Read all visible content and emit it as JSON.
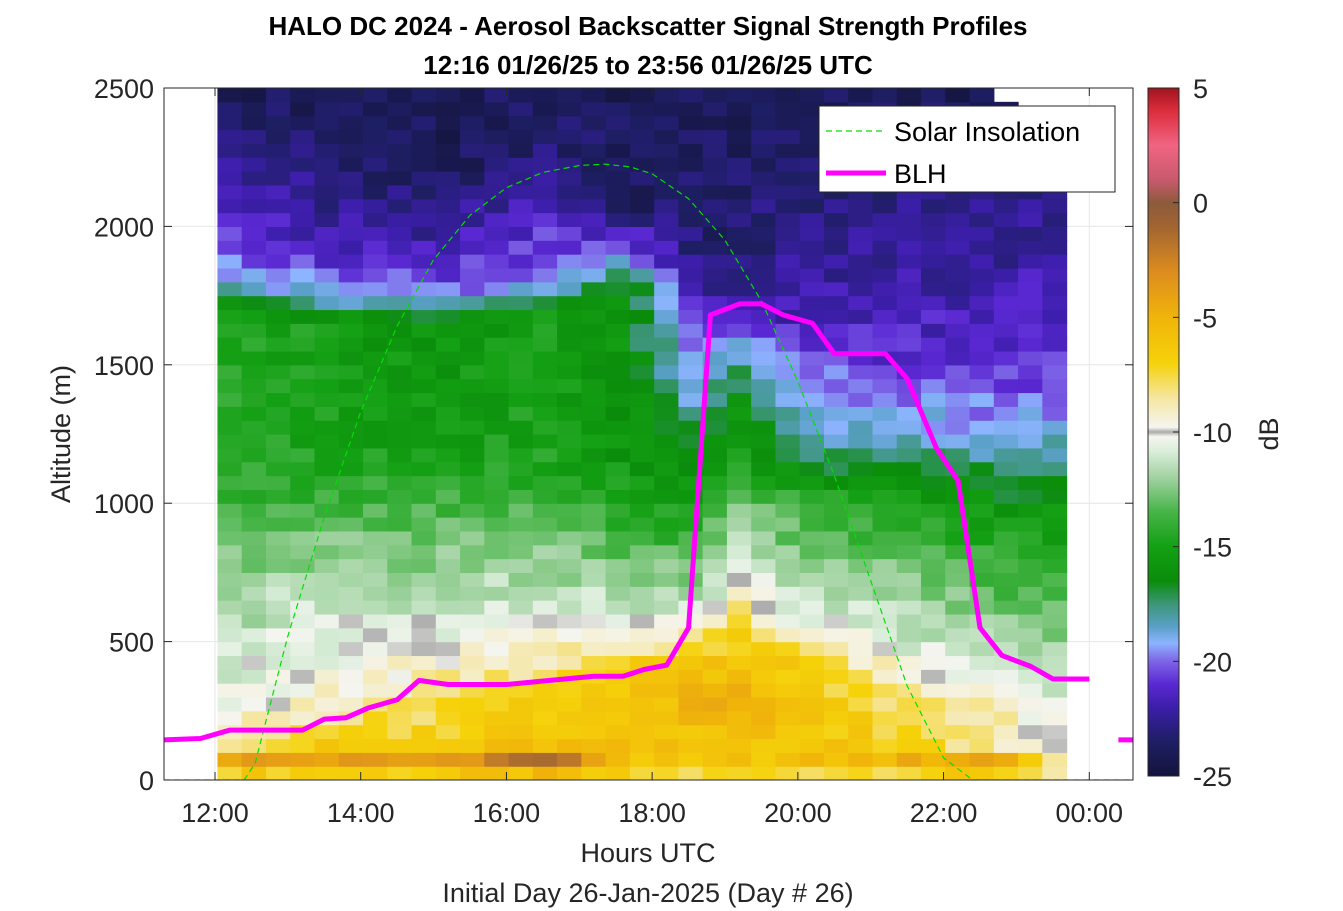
{
  "chart_data": {
    "type": "heatmap",
    "title": "HALO DC 2024 - Aerosol Backscatter Signal Strength Profiles",
    "subtitle": "12:16 01/26/25 to 23:56 01/26/25  UTC",
    "xlabel": "Hours UTC",
    "xlabel2": "Initial Day 26-Jan-2025 (Day # 26)",
    "ylabel": "Altitude (m)",
    "colorbar_label": "dB",
    "xlim": [
      11.3,
      24.6
    ],
    "ylim": [
      0,
      2500
    ],
    "clim": [
      -25,
      5
    ],
    "grid": true,
    "legend_position": "top-right",
    "x_ticks": [
      12,
      14,
      16,
      18,
      20,
      22,
      24
    ],
    "x_tick_labels": [
      "12:00",
      "14:00",
      "16:00",
      "18:00",
      "20:00",
      "22:00",
      "00:00"
    ],
    "y_ticks": [
      0,
      500,
      1000,
      1500,
      2000,
      2500
    ],
    "y_tick_labels": [
      "0",
      "500",
      "1000",
      "1500",
      "2000",
      "2500"
    ],
    "cbar_ticks": [
      5,
      0,
      -5,
      -10,
      -15,
      -20,
      -25
    ],
    "cbar_tick_labels": [
      "5",
      "0",
      "-5",
      "-10",
      "-15",
      "-20",
      "-25"
    ],
    "colors": {
      "solar_insolation": "#00e000",
      "blh": "#ff00ff"
    },
    "series": [
      {
        "name": "Solar Insolation",
        "style": "dashed",
        "x": [
          11.3,
          12.4,
          12.55,
          13.0,
          13.5,
          14.0,
          14.5,
          15.0,
          15.5,
          16.0,
          16.5,
          17.0,
          17.35,
          17.7,
          18.0,
          18.5,
          19.0,
          19.5,
          20.0,
          20.5,
          21.0,
          21.5,
          22.0,
          22.3,
          22.4,
          24.6
        ],
        "y": [
          0,
          0,
          60,
          520,
          950,
          1330,
          1640,
          1880,
          2040,
          2140,
          2195,
          2220,
          2225,
          2215,
          2190,
          2100,
          1950,
          1730,
          1440,
          1100,
          720,
          340,
          80,
          20,
          0,
          0
        ]
      },
      {
        "name": "BLH",
        "x": [
          11.3,
          11.8,
          12.2,
          12.6,
          13.0,
          13.2,
          13.5,
          13.8,
          14.1,
          14.5,
          14.8,
          15.2,
          15.6,
          16.0,
          16.4,
          16.8,
          17.2,
          17.6,
          17.9,
          18.2,
          18.5,
          18.8,
          19.2,
          19.5,
          19.8,
          20.2,
          20.5,
          20.9,
          21.2,
          21.5,
          21.9,
          22.2,
          22.5,
          22.8,
          23.2,
          23.5,
          24.0
        ],
        "y": [
          145,
          150,
          180,
          180,
          180,
          180,
          220,
          225,
          260,
          290,
          360,
          345,
          345,
          345,
          355,
          365,
          375,
          375,
          400,
          415,
          550,
          1680,
          1720,
          1720,
          1680,
          1650,
          1540,
          1540,
          1540,
          1450,
          1200,
          1080,
          550,
          450,
          410,
          365,
          365
        ]
      },
      {
        "name": "",
        "x": [
          24.4,
          24.6
        ],
        "y": [
          145,
          145
        ]
      }
    ],
    "heatmap": {
      "x_start": 12.2,
      "x_step": 0.333,
      "n_cols": 35,
      "y_start": 25,
      "y_step": 50,
      "n_rows": 50,
      "profile_knots": [
        {
          "x": 12.2,
          "top": 2480,
          "pts": [
            [
              0,
              -8
            ],
            [
              75,
              -4
            ],
            [
              130,
              -8
            ],
            [
              200,
              -9
            ],
            [
              280,
              -10
            ],
            [
              400,
              -11
            ],
            [
              700,
              -12
            ],
            [
              1000,
              -14
            ],
            [
              1700,
              -15
            ],
            [
              1800,
              -19
            ],
            [
              2000,
              -21
            ],
            [
              2200,
              -22
            ],
            [
              2500,
              -24
            ]
          ]
        },
        {
          "x": 13.5,
          "top": 2480,
          "pts": [
            [
              0,
              -8
            ],
            [
              75,
              -4
            ],
            [
              130,
              -7
            ],
            [
              200,
              -8
            ],
            [
              280,
              -9
            ],
            [
              400,
              -10
            ],
            [
              600,
              -11
            ],
            [
              900,
              -13
            ],
            [
              1200,
              -15
            ],
            [
              1650,
              -15
            ],
            [
              1750,
              -19
            ],
            [
              1950,
              -22
            ],
            [
              2200,
              -23
            ],
            [
              2500,
              -24
            ]
          ]
        },
        {
          "x": 15.0,
          "top": 2480,
          "pts": [
            [
              0,
              -8
            ],
            [
              75,
              -4
            ],
            [
              130,
              -7
            ],
            [
              200,
              -7
            ],
            [
              280,
              -8
            ],
            [
              400,
              -9
            ],
            [
              600,
              -11
            ],
            [
              900,
              -13
            ],
            [
              1200,
              -15
            ],
            [
              1650,
              -16
            ],
            [
              1750,
              -20
            ],
            [
              1950,
              -22
            ],
            [
              2200,
              -24
            ],
            [
              2500,
              -24
            ]
          ]
        },
        {
          "x": 16.5,
          "top": 2480,
          "pts": [
            [
              0,
              -8
            ],
            [
              75,
              -1
            ],
            [
              130,
              -6
            ],
            [
              200,
              -6
            ],
            [
              300,
              -7
            ],
            [
              450,
              -9
            ],
            [
              650,
              -11
            ],
            [
              900,
              -13
            ],
            [
              1200,
              -15
            ],
            [
              1700,
              -15
            ],
            [
              1800,
              -20
            ],
            [
              2000,
              -21
            ],
            [
              2200,
              -23
            ],
            [
              2500,
              -24
            ]
          ]
        },
        {
          "x": 17.7,
          "top": 2480,
          "pts": [
            [
              0,
              -8
            ],
            [
              75,
              -6
            ],
            [
              130,
              -6
            ],
            [
              250,
              -6
            ],
            [
              420,
              -7
            ],
            [
              520,
              -10
            ],
            [
              700,
              -12
            ],
            [
              900,
              -14
            ],
            [
              1200,
              -16
            ],
            [
              1800,
              -16
            ],
            [
              1900,
              -20
            ],
            [
              2100,
              -24
            ],
            [
              2500,
              -24
            ]
          ]
        },
        {
          "x": 18.6,
          "top": 2480,
          "pts": [
            [
              0,
              -8
            ],
            [
              75,
              -7
            ],
            [
              130,
              -6
            ],
            [
              300,
              -5
            ],
            [
              520,
              -8
            ],
            [
              620,
              -11
            ],
            [
              800,
              -13
            ],
            [
              1100,
              -16
            ],
            [
              1300,
              -17
            ],
            [
              1400,
              -19
            ],
            [
              1600,
              -20
            ],
            [
              1800,
              -23
            ],
            [
              2500,
              -24
            ]
          ]
        },
        {
          "x": 19.2,
          "top": 2480,
          "pts": [
            [
              0,
              -8
            ],
            [
              75,
              -6
            ],
            [
              130,
              -6
            ],
            [
              300,
              -5
            ],
            [
              550,
              -7
            ],
            [
              650,
              -9
            ],
            [
              800,
              -11
            ],
            [
              1000,
              -13
            ],
            [
              1200,
              -15
            ],
            [
              1480,
              -17
            ],
            [
              1600,
              -20
            ],
            [
              1800,
              -23
            ],
            [
              2500,
              -24
            ]
          ]
        },
        {
          "x": 20.0,
          "top": 2480,
          "pts": [
            [
              0,
              -8
            ],
            [
              75,
              -6
            ],
            [
              130,
              -6
            ],
            [
              300,
              -6
            ],
            [
              450,
              -7
            ],
            [
              550,
              -10
            ],
            [
              750,
              -12
            ],
            [
              1000,
              -14
            ],
            [
              1150,
              -17
            ],
            [
              1300,
              -19
            ],
            [
              1500,
              -20
            ],
            [
              1700,
              -22
            ],
            [
              2500,
              -24
            ]
          ]
        },
        {
          "x": 21.5,
          "top": 2480,
          "pts": [
            [
              0,
              -8
            ],
            [
              75,
              -5
            ],
            [
              130,
              -7
            ],
            [
              250,
              -8
            ],
            [
              350,
              -9
            ],
            [
              500,
              -11
            ],
            [
              700,
              -12
            ],
            [
              1000,
              -15
            ],
            [
              1200,
              -18
            ],
            [
              1500,
              -21
            ],
            [
              1800,
              -22
            ],
            [
              2500,
              -24
            ]
          ]
        },
        {
          "x": 22.8,
          "top": 2480,
          "pts": [
            [
              0,
              -8
            ],
            [
              75,
              -4
            ],
            [
              130,
              -9
            ],
            [
              250,
              -9
            ],
            [
              350,
              -10
            ],
            [
              500,
              -12
            ],
            [
              800,
              -14
            ],
            [
              1100,
              -17
            ],
            [
              1250,
              -19
            ],
            [
              1500,
              -21
            ],
            [
              1800,
              -22
            ],
            [
              2500,
              -24
            ]
          ]
        },
        {
          "x": 23.9,
          "top": 2050,
          "pts": [
            [
              0,
              -8
            ],
            [
              75,
              -11
            ],
            [
              130,
              -10
            ],
            [
              250,
              -11
            ],
            [
              400,
              -12
            ],
            [
              700,
              -14
            ],
            [
              1000,
              -16
            ],
            [
              1200,
              -18
            ],
            [
              1400,
              -20
            ],
            [
              1700,
              -21
            ],
            [
              2000,
              -22
            ],
            [
              2500,
              -24
            ]
          ]
        }
      ]
    }
  }
}
